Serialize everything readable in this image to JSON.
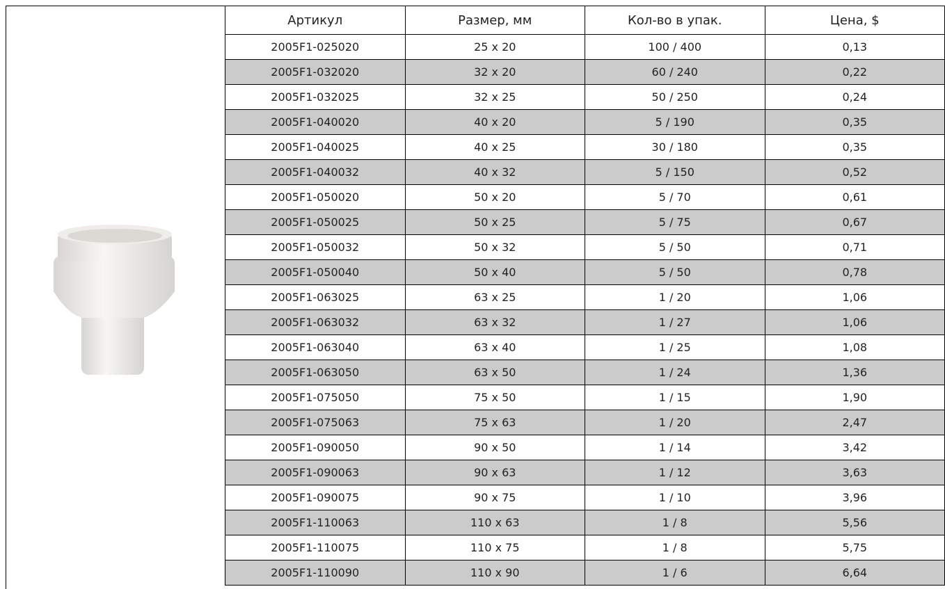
{
  "table": {
    "header": [
      "Артикул",
      "Размер, мм",
      "Кол-во в упак.",
      "Цена, $"
    ],
    "rows": [
      [
        "2005F1-025020",
        "25 x 20",
        "100 / 400",
        "0,13"
      ],
      [
        "2005F1-032020",
        "32 x 20",
        "60 / 240",
        "0,22"
      ],
      [
        "2005F1-032025",
        "32 x 25",
        "50 / 250",
        "0,24"
      ],
      [
        "2005F1-040020",
        "40 x 20",
        "5 / 190",
        "0,35"
      ],
      [
        "2005F1-040025",
        "40 x 25",
        "30 / 180",
        "0,35"
      ],
      [
        "2005F1-040032",
        "40 x 32",
        "5 / 150",
        "0,52"
      ],
      [
        "2005F1-050020",
        "50 x 20",
        "5 / 70",
        "0,61"
      ],
      [
        "2005F1-050025",
        "50 x 25",
        "5 / 75",
        "0,67"
      ],
      [
        "2005F1-050032",
        "50 x 32",
        "5 / 50",
        "0,71"
      ],
      [
        "2005F1-050040",
        "50 x 40",
        "5 / 50",
        "0,78"
      ],
      [
        "2005F1-063025",
        "63 x 25",
        "1 / 20",
        "1,06"
      ],
      [
        "2005F1-063032",
        "63 x 32",
        "1 / 27",
        "1,06"
      ],
      [
        "2005F1-063040",
        "63 x 40",
        "1 / 25",
        "1,08"
      ],
      [
        "2005F1-063050",
        "63 x 50",
        "1 / 24",
        "1,36"
      ],
      [
        "2005F1-075050",
        "75 x 50",
        "1 / 15",
        "1,90"
      ],
      [
        "2005F1-075063",
        "75 x 63",
        "1 / 20",
        "2,47"
      ],
      [
        "2005F1-090050",
        "90 x 50",
        "1 / 14",
        "3,42"
      ],
      [
        "2005F1-090063",
        "90 x 63",
        "1 / 12",
        "3,63"
      ],
      [
        "2005F1-090075",
        "90 x 75",
        "1 / 10",
        "3,96"
      ],
      [
        "2005F1-110063",
        "110 x 63",
        "1 / 8",
        "5,56"
      ],
      [
        "2005F1-110075",
        "110 x 75",
        "1 / 8",
        "5,75"
      ],
      [
        "2005F1-110090",
        "110 x 90",
        "1 / 6",
        "6,64"
      ]
    ]
  }
}
